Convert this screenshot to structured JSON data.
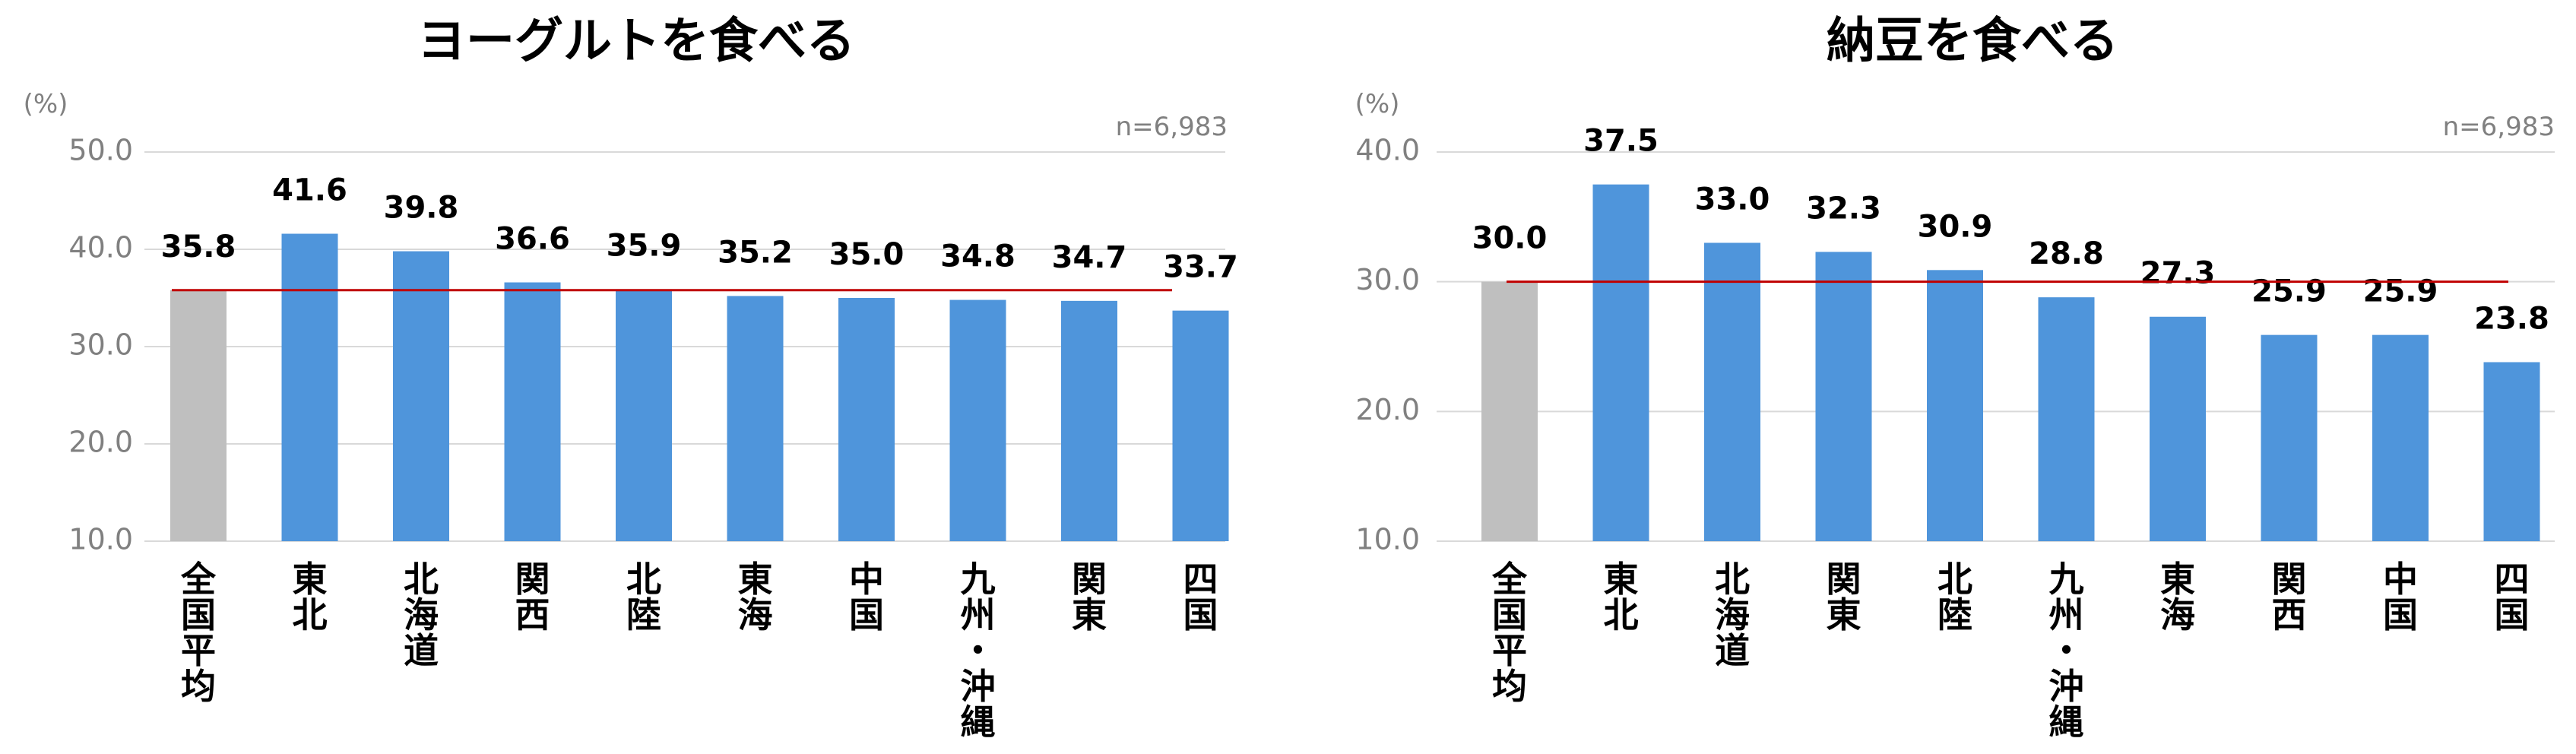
{
  "chart_data": [
    {
      "type": "bar",
      "title": "ヨーグルトを食べる",
      "unit_label": "(%)",
      "sample_note": "n=6,983",
      "categories": [
        "全国平均",
        "東北",
        "北海道",
        "関西",
        "北陸",
        "東海",
        "中国",
        "九州・沖縄",
        "関東",
        "四国"
      ],
      "values": [
        35.8,
        41.6,
        39.8,
        36.6,
        35.9,
        35.2,
        35.0,
        34.8,
        34.7,
        33.7
      ],
      "value_labels": [
        "35.8",
        "41.6",
        "39.8",
        "36.6",
        "35.9",
        "35.2",
        "35.0",
        "34.8",
        "34.7",
        "33.7"
      ],
      "ylim": [
        10,
        50
      ],
      "yticks": [
        "10.0",
        "20.0",
        "30.0",
        "40.0",
        "50.0"
      ],
      "reference_line": 35.8,
      "grid": true,
      "legend": "none",
      "colors": {
        "highlight_bar": "#bfbfbf",
        "bar": "#4f95db",
        "reference_line": "#c00000",
        "gridline": "#d9d9d9",
        "axis_text": "#808080"
      }
    },
    {
      "type": "bar",
      "title": "納豆を食べる",
      "unit_label": "(%)",
      "sample_note": "n=6,983",
      "categories": [
        "全国平均",
        "東北",
        "北海道",
        "関東",
        "北陸",
        "九州・沖縄",
        "東海",
        "関西",
        "中国",
        "四国"
      ],
      "values": [
        30.0,
        37.5,
        33.0,
        32.3,
        30.9,
        28.8,
        27.3,
        25.9,
        25.9,
        23.8
      ],
      "value_labels": [
        "30.0",
        "37.5",
        "33.0",
        "32.3",
        "30.9",
        "28.8",
        "27.3",
        "25.9",
        "25.9",
        "23.8"
      ],
      "ylim": [
        10,
        40
      ],
      "yticks": [
        "10.0",
        "20.0",
        "30.0",
        "40.0"
      ],
      "reference_line": 30.0,
      "grid": true,
      "legend": "none",
      "colors": {
        "highlight_bar": "#bfbfbf",
        "bar": "#4f95db",
        "reference_line": "#c00000",
        "gridline": "#d9d9d9",
        "axis_text": "#808080"
      }
    }
  ]
}
